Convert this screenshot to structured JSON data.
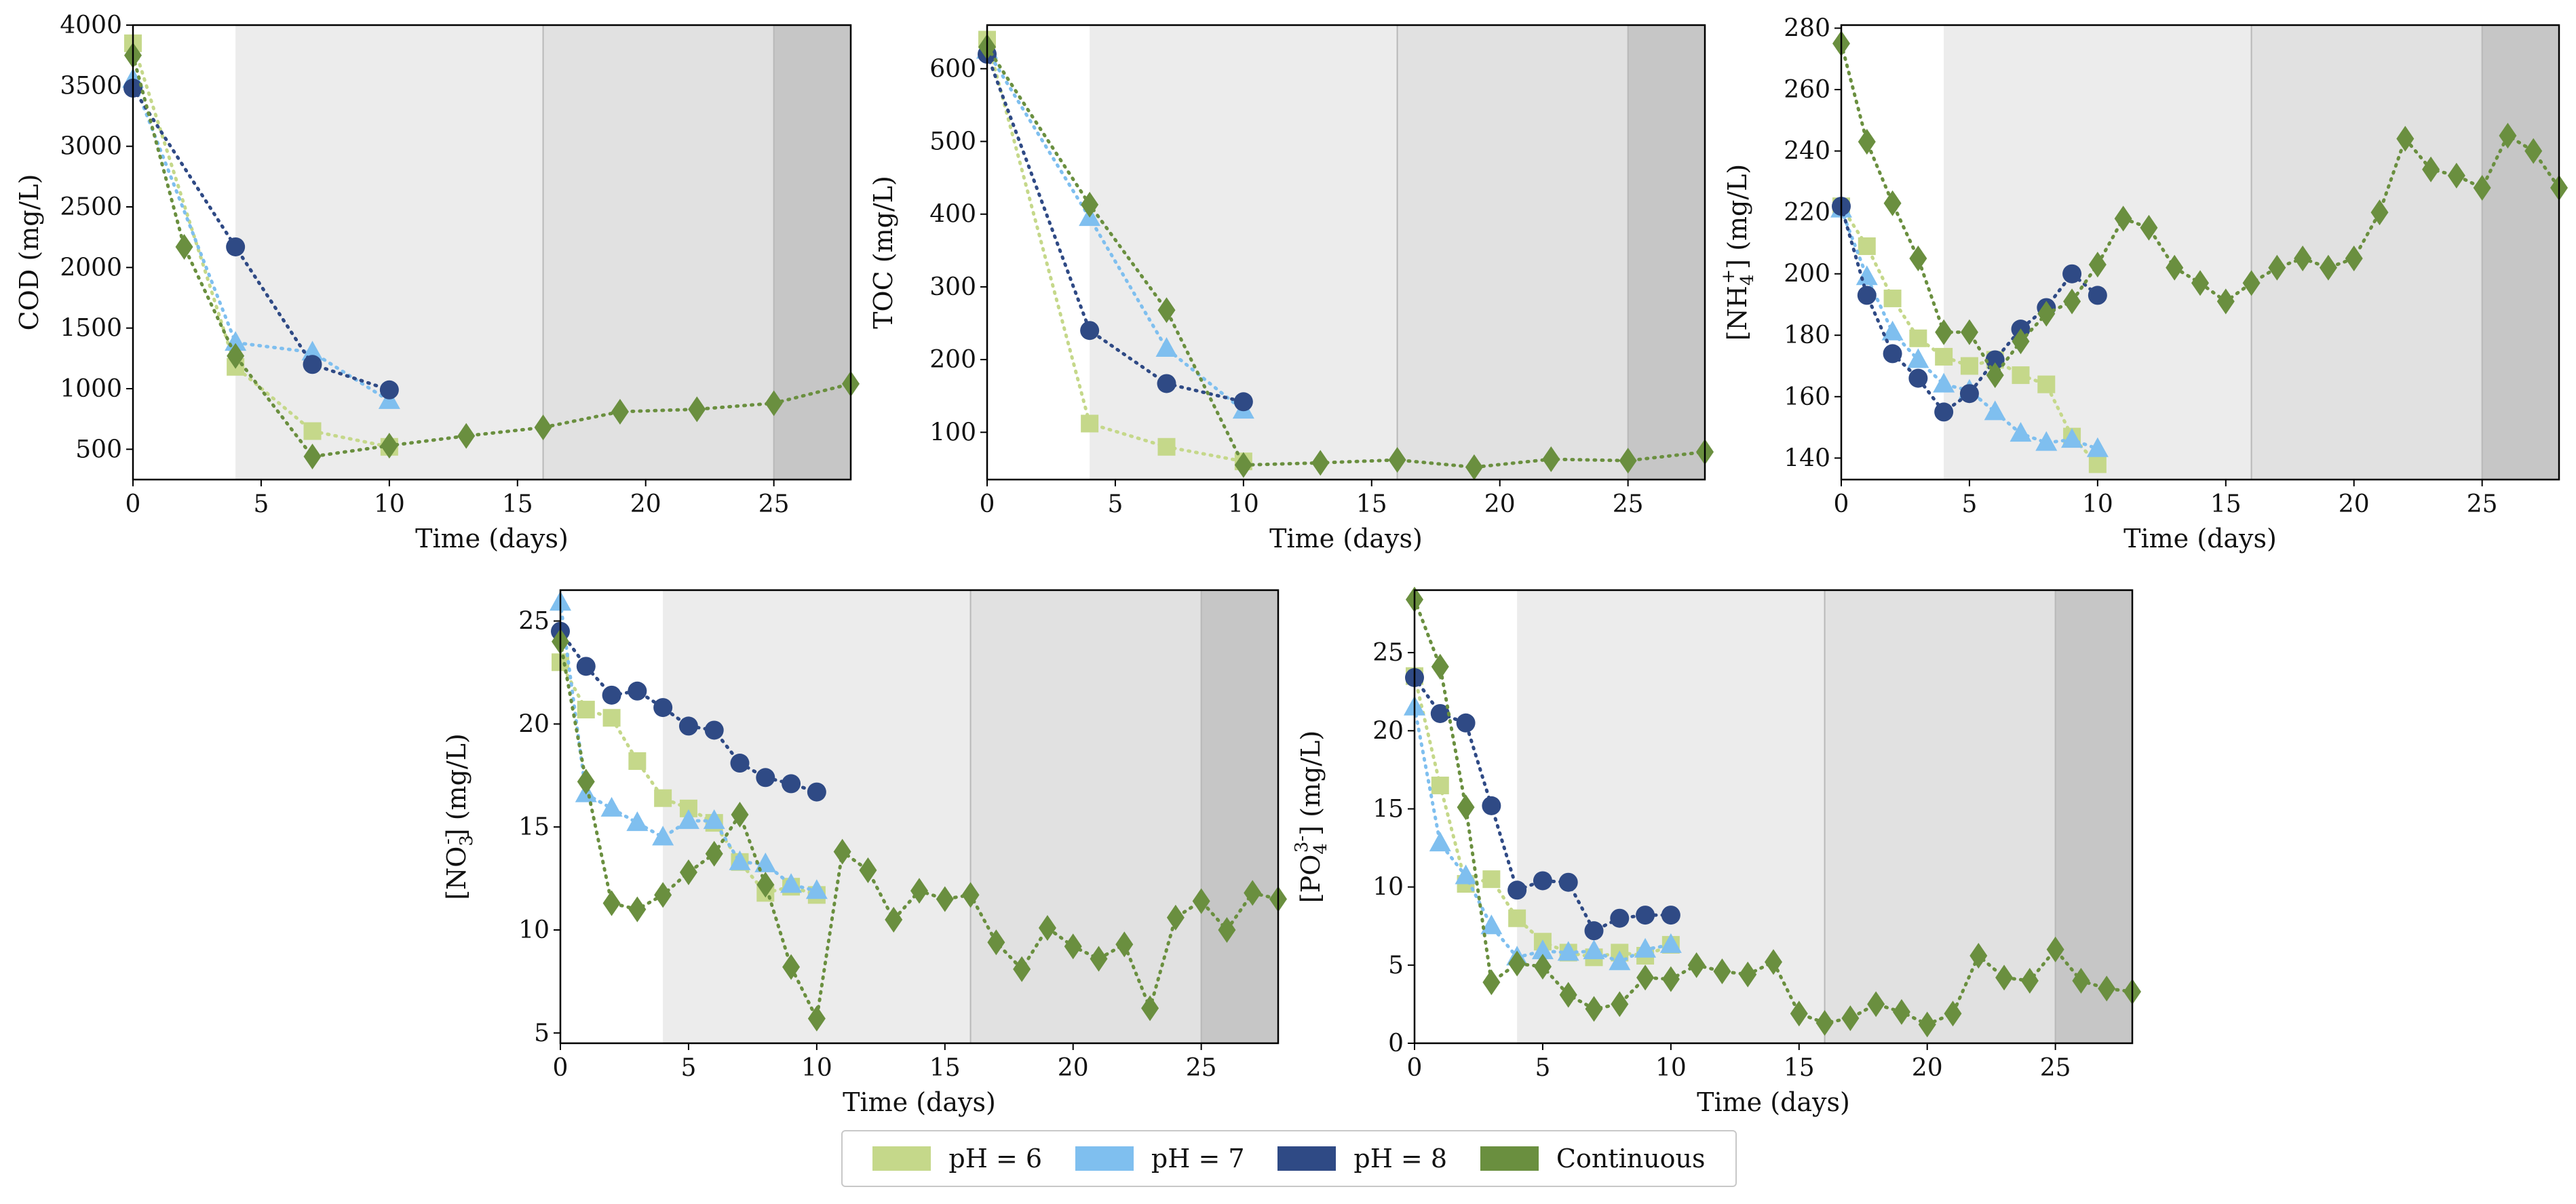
{
  "colors": {
    "ph6": "#c5d88a",
    "ph7": "#7fbfef",
    "ph8": "#2f4a85",
    "continuous": "#6a8f3f",
    "shade1": "#ececec",
    "shade2": "#e1e1e1",
    "shade3": "#c6c6c6"
  },
  "legend": {
    "items": [
      {
        "key": "ph6",
        "label": "pH = 6"
      },
      {
        "key": "ph7",
        "label": "pH = 7"
      },
      {
        "key": "ph8",
        "label": "pH = 8"
      },
      {
        "key": "continuous",
        "label": "Continuous"
      }
    ]
  },
  "chart_data": [
    {
      "id": "cod",
      "type": "line",
      "xlabel": "Time (days)",
      "ylabel": "COD (mg/L)",
      "xlim": [
        0,
        28
      ],
      "ylim": [
        250,
        4000
      ],
      "xticks": [
        0,
        5,
        10,
        15,
        20,
        25
      ],
      "yticks": [
        500,
        1000,
        1500,
        2000,
        2500,
        3000,
        3500,
        4000
      ],
      "shaded_regions": [
        [
          4,
          16
        ],
        [
          16,
          25
        ],
        [
          25,
          28
        ]
      ],
      "series": [
        {
          "name": "pH = 6",
          "key": "ph6",
          "marker": "square",
          "x": [
            0,
            4,
            7,
            10
          ],
          "y": [
            3850,
            1180,
            650,
            520
          ]
        },
        {
          "name": "pH = 7",
          "key": "ph7",
          "marker": "triangle",
          "x": [
            0,
            4,
            7,
            10
          ],
          "y": [
            3550,
            1380,
            1300,
            900
          ]
        },
        {
          "name": "pH = 8",
          "key": "ph8",
          "marker": "circle",
          "x": [
            0,
            4,
            7,
            10
          ],
          "y": [
            3480,
            2170,
            1200,
            990
          ]
        },
        {
          "name": "Continuous",
          "key": "continuous",
          "marker": "diamond",
          "x": [
            0,
            2,
            4,
            7,
            10,
            13,
            16,
            19,
            22,
            25,
            28
          ],
          "y": [
            3750,
            2170,
            1270,
            440,
            530,
            610,
            680,
            810,
            830,
            880,
            1040
          ]
        }
      ]
    },
    {
      "id": "toc",
      "type": "line",
      "xlabel": "Time (days)",
      "ylabel": "TOC (mg/L)",
      "xlim": [
        0,
        28
      ],
      "ylim": [
        35,
        660
      ],
      "xticks": [
        0,
        5,
        10,
        15,
        20,
        25
      ],
      "yticks": [
        100,
        200,
        300,
        400,
        500,
        600
      ],
      "shaded_regions": [
        [
          4,
          16
        ],
        [
          16,
          25
        ],
        [
          25,
          28
        ]
      ],
      "series": [
        {
          "name": "pH = 6",
          "key": "ph6",
          "marker": "square",
          "x": [
            0,
            4,
            7,
            10
          ],
          "y": [
            640,
            112,
            80,
            60
          ]
        },
        {
          "name": "pH = 7",
          "key": "ph7",
          "marker": "triangle",
          "x": [
            0,
            4,
            7,
            10
          ],
          "y": [
            625,
            395,
            215,
            130
          ]
        },
        {
          "name": "pH = 8",
          "key": "ph8",
          "marker": "circle",
          "x": [
            0,
            4,
            7,
            10
          ],
          "y": [
            620,
            240,
            167,
            142
          ]
        },
        {
          "name": "Continuous",
          "key": "continuous",
          "marker": "diamond",
          "x": [
            0,
            4,
            7,
            10,
            13,
            16,
            19,
            22,
            25,
            28
          ],
          "y": [
            630,
            413,
            268,
            55,
            58,
            62,
            52,
            63,
            61,
            73
          ]
        }
      ]
    },
    {
      "id": "nh4",
      "type": "line",
      "xlabel": "Time (days)",
      "ylabel": "[NH4+] (mg/L)",
      "xlim": [
        0,
        28
      ],
      "ylim": [
        133,
        281
      ],
      "xticks": [
        0,
        5,
        10,
        15,
        20,
        25
      ],
      "yticks": [
        140,
        160,
        180,
        200,
        220,
        240,
        260,
        280
      ],
      "shaded_regions": [
        [
          4,
          16
        ],
        [
          16,
          25
        ],
        [
          25,
          28
        ]
      ],
      "series": [
        {
          "name": "pH = 6",
          "key": "ph6",
          "marker": "square",
          "x": [
            0,
            1,
            2,
            3,
            4,
            5,
            6,
            7,
            8,
            9,
            10
          ],
          "y": [
            222,
            209,
            192,
            179,
            173,
            170,
            172,
            167,
            164,
            147,
            138
          ]
        },
        {
          "name": "pH = 7",
          "key": "ph7",
          "marker": "triangle",
          "x": [
            0,
            1,
            2,
            3,
            4,
            5,
            6,
            7,
            8,
            9,
            10
          ],
          "y": [
            221,
            199,
            181,
            172,
            164,
            162,
            155,
            148,
            145,
            146,
            143
          ]
        },
        {
          "name": "pH = 8",
          "key": "ph8",
          "marker": "circle",
          "x": [
            0,
            1,
            2,
            3,
            4,
            5,
            6,
            7,
            8,
            9,
            10
          ],
          "y": [
            222,
            193,
            174,
            166,
            155,
            161,
            172,
            182,
            189,
            200,
            193
          ]
        },
        {
          "name": "Continuous",
          "key": "continuous",
          "marker": "diamond",
          "x": [
            0,
            1,
            2,
            3,
            4,
            5,
            6,
            7,
            8,
            9,
            10,
            11,
            12,
            13,
            14,
            15,
            16,
            17,
            18,
            19,
            20,
            21,
            22,
            23,
            24,
            25,
            26,
            27,
            28
          ],
          "y": [
            275,
            243,
            223,
            205,
            181,
            181,
            167,
            178,
            187,
            191,
            203,
            218,
            215,
            202,
            197,
            191,
            197,
            202,
            205,
            202,
            205,
            220,
            244,
            234,
            232,
            228,
            245,
            240,
            228
          ]
        }
      ]
    },
    {
      "id": "no3",
      "type": "line",
      "xlabel": "Time (days)",
      "ylabel": "[NO3-] (mg/L)",
      "xlim": [
        0,
        28
      ],
      "ylim": [
        4.5,
        26.5
      ],
      "xticks": [
        0,
        5,
        10,
        15,
        20,
        25
      ],
      "yticks": [
        5,
        10,
        15,
        20,
        25
      ],
      "shaded_regions": [
        [
          4,
          16
        ],
        [
          16,
          25
        ],
        [
          25,
          28
        ]
      ],
      "series": [
        {
          "name": "pH = 6",
          "key": "ph6",
          "marker": "square",
          "x": [
            0,
            1,
            2,
            3,
            4,
            5,
            6,
            7,
            8,
            9,
            10
          ],
          "y": [
            23.0,
            20.7,
            20.3,
            18.2,
            16.4,
            15.9,
            15.2,
            13.3,
            11.8,
            12.1,
            11.7
          ]
        },
        {
          "name": "pH = 7",
          "key": "ph7",
          "marker": "triangle",
          "x": [
            0,
            1,
            2,
            3,
            4,
            5,
            6,
            7,
            8,
            9,
            10
          ],
          "y": [
            25.9,
            16.6,
            15.9,
            15.2,
            14.5,
            15.3,
            15.3,
            13.3,
            13.2,
            12.2,
            11.9
          ]
        },
        {
          "name": "pH = 8",
          "key": "ph8",
          "marker": "circle",
          "x": [
            0,
            1,
            2,
            3,
            4,
            5,
            6,
            7,
            8,
            9,
            10
          ],
          "y": [
            24.5,
            22.8,
            21.4,
            21.6,
            20.8,
            19.9,
            19.7,
            18.1,
            17.4,
            17.1,
            16.7
          ]
        },
        {
          "name": "Continuous",
          "key": "continuous",
          "marker": "diamond",
          "x": [
            0,
            1,
            2,
            3,
            4,
            5,
            6,
            7,
            8,
            9,
            10,
            11,
            12,
            13,
            14,
            15,
            16,
            17,
            18,
            19,
            20,
            21,
            22,
            23,
            24,
            25,
            26,
            27,
            28
          ],
          "y": [
            24.0,
            17.2,
            11.3,
            11.0,
            11.7,
            12.8,
            13.7,
            15.6,
            12.2,
            8.2,
            5.7,
            13.8,
            12.9,
            10.5,
            11.9,
            11.5,
            11.7,
            9.4,
            8.1,
            10.1,
            9.2,
            8.6,
            9.3,
            6.2,
            10.6,
            11.4,
            10.0,
            11.8,
            11.5
          ]
        }
      ]
    },
    {
      "id": "po4",
      "type": "line",
      "xlabel": "Time (days)",
      "ylabel": "[PO4 3-] (mg/L)",
      "xlim": [
        0,
        28
      ],
      "ylim": [
        0,
        29
      ],
      "xticks": [
        0,
        5,
        10,
        15,
        20,
        25
      ],
      "yticks": [
        0,
        5,
        10,
        15,
        20,
        25
      ],
      "shaded_regions": [
        [
          4,
          16
        ],
        [
          16,
          25
        ],
        [
          25,
          28
        ]
      ],
      "series": [
        {
          "name": "pH = 6",
          "key": "ph6",
          "marker": "square",
          "x": [
            0,
            1,
            2,
            3,
            4,
            5,
            6,
            7,
            8,
            9,
            10
          ],
          "y": [
            23.5,
            16.5,
            10.2,
            10.5,
            8.0,
            6.5,
            5.8,
            5.5,
            5.8,
            5.6,
            6.3
          ]
        },
        {
          "name": "pH = 7",
          "key": "ph7",
          "marker": "triangle",
          "x": [
            0,
            1,
            2,
            3,
            4,
            5,
            6,
            7,
            8,
            9,
            10
          ],
          "y": [
            21.5,
            12.8,
            10.7,
            7.5,
            5.5,
            5.9,
            5.8,
            5.9,
            5.2,
            6.0,
            6.3
          ]
        },
        {
          "name": "pH = 8",
          "key": "ph8",
          "marker": "circle",
          "x": [
            0,
            1,
            2,
            3,
            4,
            5,
            6,
            7,
            8,
            9,
            10
          ],
          "y": [
            23.4,
            21.1,
            20.5,
            15.2,
            9.8,
            10.4,
            10.3,
            7.2,
            8.0,
            8.2,
            8.2
          ]
        },
        {
          "name": "Continuous",
          "key": "continuous",
          "marker": "diamond",
          "x": [
            0,
            1,
            2,
            3,
            4,
            5,
            6,
            7,
            8,
            9,
            10,
            11,
            12,
            13,
            14,
            15,
            16,
            17,
            18,
            19,
            20,
            21,
            22,
            23,
            24,
            25,
            26,
            27,
            28
          ],
          "y": [
            28.4,
            24.1,
            15.1,
            3.9,
            5.1,
            4.9,
            3.1,
            2.2,
            2.5,
            4.2,
            4.1,
            5.0,
            4.6,
            4.4,
            5.2,
            1.9,
            1.3,
            1.6,
            2.5,
            2.0,
            1.2,
            1.9,
            5.6,
            4.2,
            4.0,
            6.0,
            4.0,
            3.5,
            3.3
          ]
        }
      ]
    }
  ]
}
